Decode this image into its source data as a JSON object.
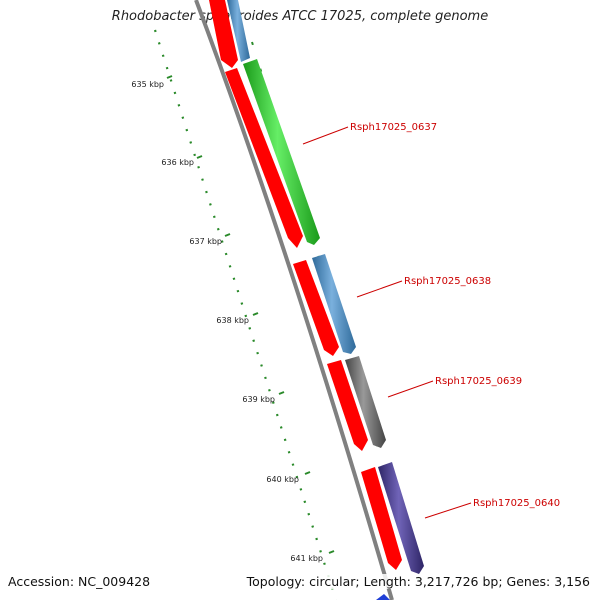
{
  "title": "Rhodobacter sphaeroides ATCC 17025, complete genome",
  "footer": {
    "accession": "Accession: NC_009428",
    "topology": "Topology: circular; Length: 3,217,726 bp; Genes: 3,156"
  },
  "ruler": {
    "ticks": [
      "635 kbp",
      "636 kbp",
      "637 kbp",
      "638 kbp",
      "639 kbp",
      "640 kbp",
      "641 kbp"
    ]
  },
  "genes": [
    {
      "label": "Rsph17025_0637",
      "color": "#33cc33"
    },
    {
      "label": "Rsph17025_0638",
      "color": "#4d88bb"
    },
    {
      "label": "Rsph17025_0639",
      "color": "#666666"
    },
    {
      "label": "Rsph17025_0640",
      "color": "#4a3f8c"
    }
  ],
  "colors": {
    "backbone": "#808080",
    "reverse_strand": "#ff0000",
    "tick": "#2a8a2a",
    "label": "#cc0000"
  }
}
